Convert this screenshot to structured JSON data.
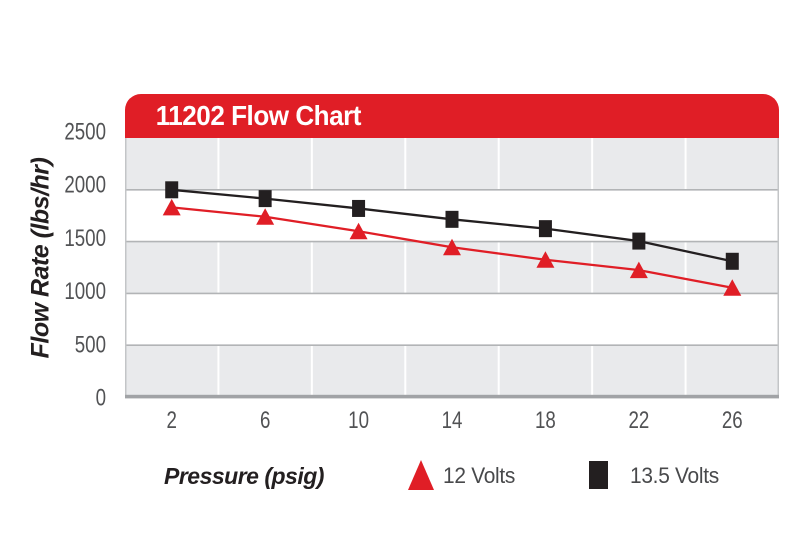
{
  "header": {
    "title": "11202 Flow Chart"
  },
  "colors": {
    "brand_red": "#e01e26",
    "series_black": "#231f20",
    "band_gray": "#e9eaec",
    "gridline_gray": "#b2b4b6",
    "axis_line_gray": "#a1a3a6",
    "plot_edge_gray": "#c3c5c7",
    "tick_text_gray": "#515254",
    "legend_text_gray": "#48494b",
    "title_text_white": "#ffffff"
  },
  "chart_data": {
    "type": "line",
    "title": "11202 Flow Chart",
    "xlabel": "Pressure (psig)",
    "ylabel": "Flow Rate (lbs/hr)",
    "x": [
      2,
      6,
      10,
      14,
      18,
      22,
      26
    ],
    "series": [
      {
        "name": "12 Volts",
        "color": "#e01e26",
        "marker": "triangle",
        "values": [
          1830,
          1740,
          1600,
          1445,
          1325,
          1225,
          1055
        ]
      },
      {
        "name": "13.5 Volts",
        "color": "#231f20",
        "marker": "square",
        "values": [
          2000,
          1915,
          1820,
          1715,
          1625,
          1505,
          1310
        ]
      }
    ],
    "ylim": [
      0,
      2500
    ],
    "yticks": [
      0,
      500,
      1000,
      1500,
      2000,
      2500
    ],
    "grid": "alternating horizontal gray/white bands every 500, gray column separators, legend below axis",
    "legend_position": "bottom"
  },
  "legend": {
    "items": [
      {
        "label": "12 Volts",
        "marker": "triangle-icon"
      },
      {
        "label": "13.5 Volts",
        "marker": "square-icon"
      }
    ]
  }
}
